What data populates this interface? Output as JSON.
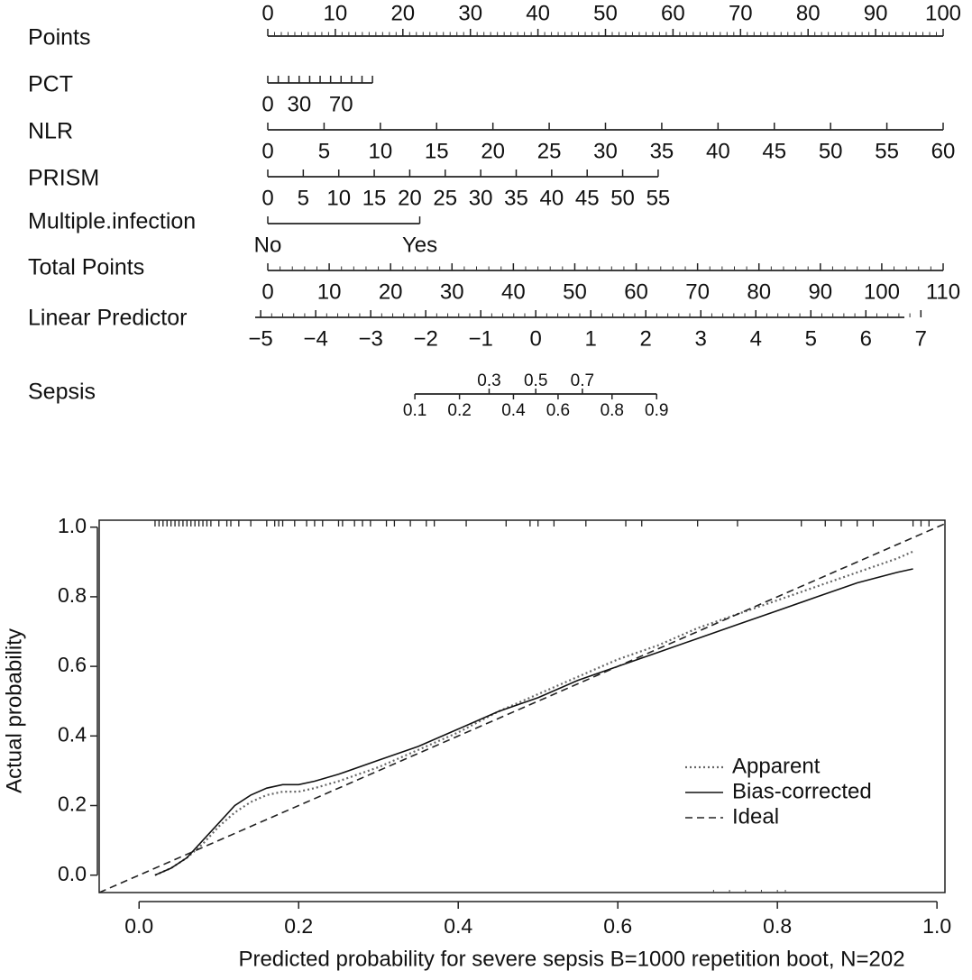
{
  "chart_data": [
    {
      "type": "nomogram",
      "rows": [
        {
          "label": "Points",
          "min": 0,
          "max": 100,
          "minor_step": 1,
          "major": [
            0,
            10,
            20,
            30,
            40,
            50,
            60,
            70,
            80,
            90,
            100
          ],
          "labels": [
            "0",
            "10",
            "20",
            "30",
            "40",
            "50",
            "60",
            "70",
            "80",
            "90",
            "100"
          ],
          "label_side": "above"
        },
        {
          "label": "PCT",
          "min": 0,
          "max": 100,
          "minor_step": 10,
          "major": [
            0,
            10,
            20,
            30,
            40,
            50,
            60,
            70,
            80,
            90,
            100
          ],
          "labels": [
            "0",
            "30",
            "70"
          ],
          "label_values": [
            0,
            30,
            70
          ],
          "label_side": "below",
          "points_at_max": 15.5
        },
        {
          "label": "NLR",
          "min": 0,
          "max": 60,
          "minor_step": 5,
          "major": [
            0,
            5,
            10,
            15,
            20,
            25,
            30,
            35,
            40,
            45,
            50,
            55,
            60
          ],
          "labels": [
            "0",
            "5",
            "10",
            "15",
            "20",
            "25",
            "30",
            "35",
            "40",
            "45",
            "50",
            "55",
            "60"
          ],
          "label_side": "below",
          "points_at_max": 100
        },
        {
          "label": "PRISM",
          "min": 0,
          "max": 55,
          "minor_step": 5,
          "major": [
            0,
            5,
            10,
            15,
            20,
            25,
            30,
            35,
            40,
            45,
            50,
            55
          ],
          "labels": [
            "0",
            "5",
            "10",
            "15",
            "20",
            "25",
            "30",
            "35",
            "40",
            "45",
            "50",
            "55"
          ],
          "label_side": "below",
          "points_at_max": 57.8
        },
        {
          "label": "Multiple.infection",
          "min": 0,
          "max": 1,
          "minor_step": null,
          "major": [
            0,
            1
          ],
          "labels": [
            "No",
            "Yes"
          ],
          "label_side": "below",
          "points_at_max": 22.5
        },
        {
          "label": "Total Points",
          "min": 0,
          "max": 110,
          "minor_step": 2,
          "major": [
            0,
            10,
            20,
            30,
            40,
            50,
            60,
            70,
            80,
            90,
            100,
            110
          ],
          "labels": [
            "0",
            "10",
            "20",
            "30",
            "40",
            "50",
            "60",
            "70",
            "80",
            "90",
            "100",
            "110"
          ],
          "label_side": "below"
        },
        {
          "label": "Linear Predictor",
          "min": -5,
          "max": 7,
          "minor_step": 0.2,
          "major": [
            -5,
            -4,
            -3,
            -2,
            -1,
            0,
            1,
            2,
            3,
            4,
            5,
            6,
            7
          ],
          "labels": [
            "−5",
            "−4",
            "−3",
            "−2",
            "−1",
            "0",
            "1",
            "2",
            "3",
            "4",
            "5",
            "6",
            "7"
          ],
          "label_side": "below",
          "scale_start": -5.1,
          "scale_end": 6.7
        },
        {
          "label": "Sepsis",
          "type": "probability",
          "major": [
            0.1,
            0.2,
            0.3,
            0.4,
            0.5,
            0.6,
            0.7,
            0.8,
            0.9
          ],
          "labels_above": [
            "0.3",
            "0.5",
            "0.7"
          ],
          "labels_above_values": [
            0.3,
            0.5,
            0.7
          ],
          "labels_below": [
            "0.1",
            "0.2",
            "0.4",
            "0.6",
            "0.8",
            "0.9"
          ],
          "labels_below_values": [
            0.1,
            0.2,
            0.4,
            0.6,
            0.8,
            0.9
          ]
        }
      ]
    },
    {
      "type": "line",
      "xlabel": "Predicted probability for severe sepsis B=1000 repetition boot, N=202",
      "ylabel": "Actual probability",
      "xlim": [
        -0.05,
        1.01
      ],
      "ylim": [
        -0.05,
        1.02
      ],
      "xticks": [
        0.0,
        0.2,
        0.4,
        0.6,
        0.8,
        1.0
      ],
      "xtick_labels": [
        "0.0",
        "0.2",
        "0.4",
        "0.6",
        "0.8",
        "1.0"
      ],
      "yticks": [
        0.0,
        0.2,
        0.4,
        0.6,
        0.8,
        1.0
      ],
      "ytick_labels": [
        "0.0",
        "0.2",
        "0.4",
        "0.6",
        "0.8",
        "1.0"
      ],
      "legend_position": "bottom-right",
      "series": [
        {
          "name": "Apparent",
          "style": "dotted",
          "color": "#666666",
          "x": [
            0.02,
            0.04,
            0.06,
            0.08,
            0.1,
            0.12,
            0.14,
            0.16,
            0.18,
            0.2,
            0.22,
            0.25,
            0.3,
            0.35,
            0.4,
            0.45,
            0.5,
            0.55,
            0.6,
            0.65,
            0.7,
            0.75,
            0.8,
            0.85,
            0.9,
            0.95,
            0.97
          ],
          "y": [
            0.0,
            0.02,
            0.05,
            0.09,
            0.14,
            0.18,
            0.21,
            0.23,
            0.24,
            0.24,
            0.25,
            0.27,
            0.31,
            0.36,
            0.41,
            0.47,
            0.52,
            0.57,
            0.62,
            0.66,
            0.71,
            0.75,
            0.79,
            0.83,
            0.87,
            0.91,
            0.93
          ]
        },
        {
          "name": "Bias-corrected",
          "style": "solid",
          "color": "#111111",
          "x": [
            0.02,
            0.04,
            0.06,
            0.08,
            0.1,
            0.12,
            0.14,
            0.16,
            0.18,
            0.2,
            0.22,
            0.25,
            0.3,
            0.35,
            0.4,
            0.45,
            0.5,
            0.55,
            0.6,
            0.65,
            0.7,
            0.75,
            0.8,
            0.85,
            0.9,
            0.95,
            0.97
          ],
          "y": [
            0.0,
            0.02,
            0.05,
            0.1,
            0.15,
            0.2,
            0.23,
            0.25,
            0.26,
            0.26,
            0.27,
            0.29,
            0.33,
            0.37,
            0.42,
            0.47,
            0.51,
            0.56,
            0.6,
            0.64,
            0.68,
            0.72,
            0.76,
            0.8,
            0.84,
            0.87,
            0.88
          ]
        },
        {
          "name": "Ideal",
          "style": "dashed",
          "color": "#222222",
          "x": [
            -0.05,
            1.01
          ],
          "y": [
            -0.05,
            1.01
          ]
        }
      ],
      "rug_top": [
        0.02,
        0.025,
        0.03,
        0.035,
        0.04,
        0.045,
        0.05,
        0.055,
        0.06,
        0.065,
        0.07,
        0.075,
        0.08,
        0.085,
        0.09,
        0.1,
        0.11,
        0.115,
        0.125,
        0.14,
        0.16,
        0.17,
        0.175,
        0.18,
        0.195,
        0.21,
        0.22,
        0.23,
        0.25,
        0.255,
        0.27,
        0.28,
        0.29,
        0.31,
        0.32,
        0.34,
        0.36,
        0.37,
        0.41,
        0.46,
        0.49,
        0.5,
        0.52,
        0.56,
        0.61,
        0.63,
        0.7,
        0.75,
        0.83,
        0.86,
        0.88,
        0.9,
        0.92,
        0.97,
        0.98,
        0.99
      ],
      "rug_bottom": [
        0.72,
        0.74,
        0.76,
        0.78,
        0.8,
        0.81
      ]
    }
  ]
}
